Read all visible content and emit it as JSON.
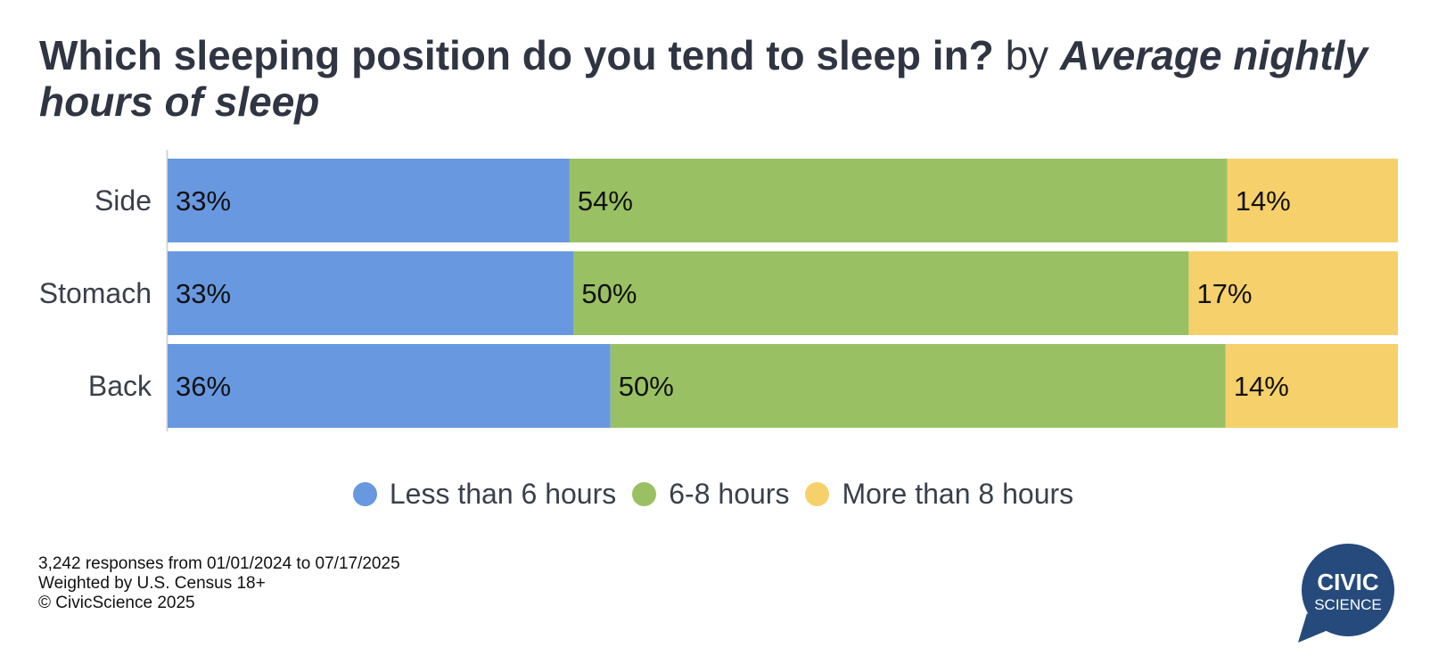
{
  "title": {
    "question": "Which sleeping position do you tend to sleep in?",
    "connector": "by",
    "subject": "Average nightly hours of sleep"
  },
  "chart_data": {
    "type": "bar",
    "orientation": "horizontal",
    "stacked": true,
    "categories": [
      "Side",
      "Stomach",
      "Back"
    ],
    "series": [
      {
        "name": "Less than 6 hours",
        "values": [
          33,
          33,
          36
        ],
        "labels": [
          "33%",
          "33%",
          "36%"
        ],
        "color": "#6898e0"
      },
      {
        "name": "6-8 hours",
        "values": [
          54,
          50,
          50
        ],
        "labels": [
          "54%",
          "50%",
          "50%"
        ],
        "color": "#99c163"
      },
      {
        "name": "More than 8 hours",
        "values": [
          14,
          17,
          14
        ],
        "labels": [
          "14%",
          "17%",
          "14%"
        ],
        "color": "#f6d06a"
      }
    ],
    "value_unit": "%",
    "grid": false,
    "legend_position": "bottom"
  },
  "footer": {
    "responses": "3,242 responses from 01/01/2024 to 07/17/2025",
    "weighting": "Weighted by U.S. Census 18+",
    "copyright": "© CivicScience 2025"
  },
  "logo": {
    "line1": "CIVIC",
    "line2": "SCIENCE",
    "color": "#254a7b"
  }
}
